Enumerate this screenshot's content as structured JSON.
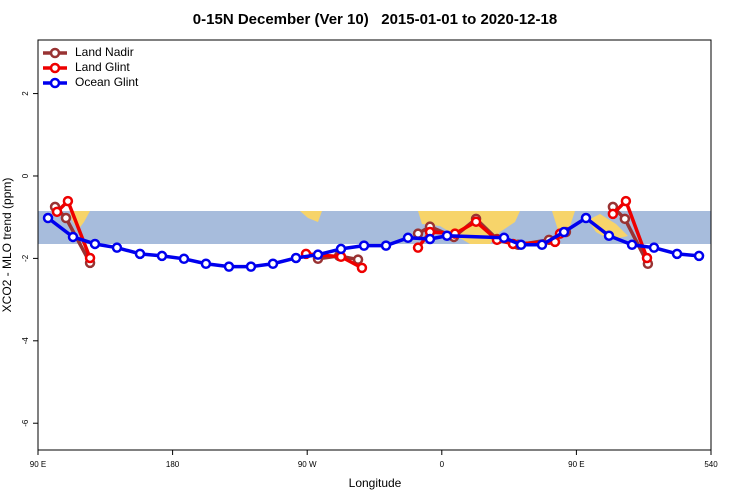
{
  "chart_data": {
    "type": "line",
    "title": "0-15N December (Ver 10)   2015-01-01 to 2020-12-18",
    "xlabel": "Longitude",
    "ylabel": "XCO2 - MLO trend (ppm)",
    "xlim": [
      90,
      540
    ],
    "ylim": [
      -6.65,
      3.3
    ],
    "xticks": [
      {
        "value": 90,
        "label": "90 E"
      },
      180,
      {
        "value": 270,
        "label": "90 W"
      },
      {
        "value": 360,
        "label": "0"
      },
      {
        "value": 450,
        "label": "90 E"
      },
      540
    ],
    "yticks": [
      -6,
      -4,
      -2,
      0,
      2
    ],
    "legend": "upper left",
    "series": [
      {
        "name": "Land Nadir",
        "color": "#993333",
        "x": [
          101.4,
          108.7,
          124.8,
          null,
          277.2,
          291.3,
          304,
          null,
          344.1,
          352.1,
          368.1,
          382.9,
          396.9,
          411,
          431.7,
          443,
          null,
          474.4,
          482.4,
          497.8
        ],
        "values": [
          -0.75,
          -1.02,
          -2.11,
          null,
          -2.01,
          -1.94,
          -2.03,
          null,
          -1.4,
          -1.23,
          -1.48,
          -1.04,
          -1.53,
          -1.67,
          -1.55,
          -1.36,
          null,
          -0.75,
          -1.04,
          -2.13
        ]
      },
      {
        "name": "Land Glint",
        "color": "#ee0000",
        "x": [
          102.7,
          110,
          124.8,
          null,
          269.2,
          292.6,
          306.6,
          null,
          344.1,
          352.1,
          368.8,
          382.9,
          396.9,
          407.6,
          435.7,
          439,
          null,
          474.4,
          483.1,
          497.2
        ],
        "values": [
          -0.87,
          -0.61,
          -1.99,
          null,
          -1.89,
          -1.96,
          -2.23,
          null,
          -1.74,
          -1.36,
          -1.4,
          -1.11,
          -1.55,
          -1.65,
          -1.6,
          -1.4,
          null,
          -0.92,
          -0.61,
          -1.99
        ]
      },
      {
        "name": "Ocean Glint",
        "color": "#0000ee",
        "x": [
          96.7,
          113.4,
          128.1,
          142.8,
          158.2,
          172.9,
          187.6,
          202.3,
          217.7,
          232.4,
          247.1,
          262.5,
          277.2,
          292.6,
          308,
          322.7,
          337.4,
          352.1,
          363.5,
          401.6,
          413,
          427,
          441.7,
          456.4,
          471.8,
          487.2,
          501.9,
          517.3,
          532
        ],
        "values": [
          -1.02,
          -1.48,
          -1.65,
          -1.74,
          -1.89,
          -1.94,
          -2.01,
          -2.13,
          -2.2,
          -2.2,
          -2.13,
          -1.99,
          -1.91,
          -1.77,
          -1.69,
          -1.69,
          -1.5,
          -1.53,
          -1.45,
          -1.5,
          -1.67,
          -1.67,
          -1.36,
          -1.02,
          -1.45,
          -1.67,
          -1.74,
          -1.89,
          -1.94
        ]
      }
    ]
  }
}
